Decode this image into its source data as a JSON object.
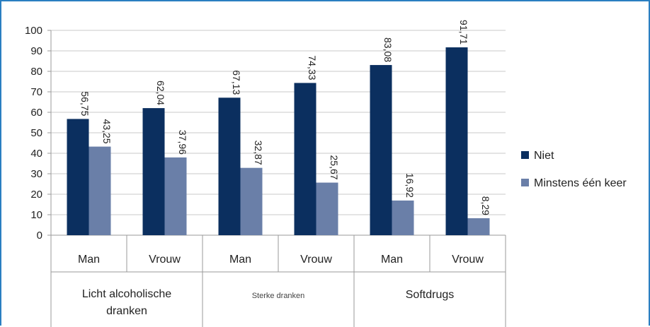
{
  "chart_data": {
    "type": "bar",
    "categories": [
      "Man",
      "Vrouw",
      "Man",
      "Vrouw",
      "Man",
      "Vrouw"
    ],
    "groups": [
      {
        "label": "Licht alcoholische dranken",
        "lines": [
          "Licht alcoholische",
          "dranken"
        ],
        "span": [
          0,
          1
        ]
      },
      {
        "label": "Sterke dranken",
        "lines": [
          "Sterke dranken"
        ],
        "span": [
          2,
          3
        ]
      },
      {
        "label": "Softdrugs",
        "lines": [
          "Softdrugs"
        ],
        "span": [
          4,
          5
        ]
      }
    ],
    "series": [
      {
        "name": "Niet",
        "color": "#0b2f5f",
        "values": [
          56.75,
          62.04,
          67.13,
          74.33,
          83.08,
          91.71
        ],
        "labels": [
          "56,75",
          "62,04",
          "67,13",
          "74,33",
          "83,08",
          "91,71"
        ]
      },
      {
        "name": "Minstens één keer",
        "color": "#6a7fa8",
        "values": [
          43.25,
          37.96,
          32.87,
          25.67,
          16.92,
          8.29
        ],
        "labels": [
          "43,25",
          "37,96",
          "32,87",
          "25,67",
          "16,92",
          "8,29"
        ]
      }
    ],
    "yticks": [
      "0",
      "10",
      "20",
      "30",
      "40",
      "50",
      "60",
      "70",
      "80",
      "90",
      "100"
    ],
    "ylim": [
      0,
      100
    ],
    "grid": true,
    "legend_position": "right"
  }
}
